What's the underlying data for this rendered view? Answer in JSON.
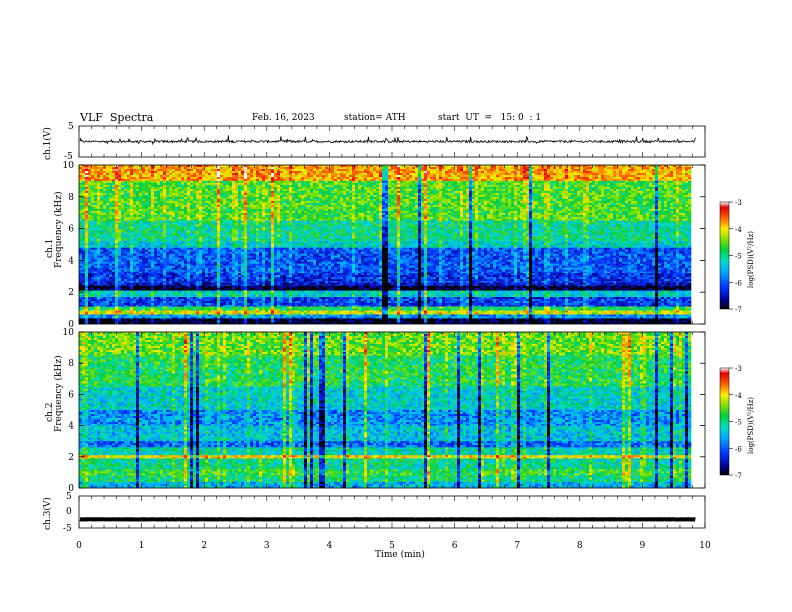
{
  "header": {
    "title": "VLF  Spectra",
    "date": "Feb. 16, 2023",
    "station": "station= ATH",
    "start_time": "start  UT  =   15: 0  : 1"
  },
  "chart_data": [
    {
      "type": "line",
      "name": "waveform-ch1",
      "ylabel": "ch.1(V)",
      "ylim": [
        -5,
        5
      ],
      "yticks": [
        "5",
        "-5"
      ],
      "xlim": [
        0,
        10
      ],
      "trace": {
        "color": "#000000",
        "baseline": 0,
        "noise_amplitude": 0.35,
        "spike_amplitude": 1.5
      }
    },
    {
      "type": "heatmap",
      "name": "spectrogram-ch1",
      "ylabel_channel": "ch.1",
      "ylabel": "Frequency  (kHz)",
      "ylim": [
        0,
        10
      ],
      "yticks": [
        "0",
        "2",
        "4",
        "6",
        "8",
        "10"
      ],
      "xlim": [
        0,
        9.8
      ],
      "colorbar": {
        "label": "log(PSD)(V²/Hz)",
        "range": [
          -7,
          -3
        ],
        "ticks": [
          "-3",
          "-4",
          "-5",
          "-6",
          "-7"
        ]
      },
      "bands": [
        {
          "freq": [
            9.0,
            10.0
          ],
          "log_psd": -4.0
        },
        {
          "freq": [
            6.5,
            9.0
          ],
          "log_psd": -4.8
        },
        {
          "freq": [
            5.2,
            6.5
          ],
          "log_psd": -5.2
        },
        {
          "freq": [
            4.8,
            5.2
          ],
          "log_psd": -5.4
        },
        {
          "freq": [
            3.2,
            4.8
          ],
          "log_psd": -6.1
        },
        {
          "freq": [
            2.6,
            3.2
          ],
          "log_psd": -6.3
        },
        {
          "freq": [
            2.4,
            2.6
          ],
          "log_psd": -6.5
        },
        {
          "freq": [
            2.1,
            2.4
          ],
          "log_psd": -7.0
        },
        {
          "freq": [
            1.7,
            2.1
          ],
          "log_psd": -5.4
        },
        {
          "freq": [
            1.1,
            1.7
          ],
          "log_psd": -6.2
        },
        {
          "freq": [
            0.85,
            1.1
          ],
          "log_psd": -5.0
        },
        {
          "freq": [
            0.6,
            0.85
          ],
          "log_psd": -4.4
        },
        {
          "freq": [
            0.35,
            0.6
          ],
          "log_psd": -5.8
        },
        {
          "freq": [
            0.0,
            0.35
          ],
          "log_psd": -7.0
        }
      ]
    },
    {
      "type": "heatmap",
      "name": "spectrogram-ch2",
      "ylabel_channel": "ch.2",
      "ylabel": "Frequency  (kHz)",
      "ylim": [
        0,
        10
      ],
      "yticks": [
        "0",
        "2",
        "4",
        "6",
        "8",
        "10"
      ],
      "xlim": [
        0,
        9.8
      ],
      "colorbar": {
        "label": "log(PSD)(V²/Hz)",
        "range": [
          -7,
          -3
        ],
        "ticks": [
          "-3",
          "-4",
          "-5",
          "-6",
          "-7"
        ]
      },
      "bands": [
        {
          "freq": [
            8.5,
            10.0
          ],
          "log_psd": -4.7
        },
        {
          "freq": [
            6.5,
            8.5
          ],
          "log_psd": -5.0
        },
        {
          "freq": [
            5.0,
            6.5
          ],
          "log_psd": -5.4
        },
        {
          "freq": [
            4.0,
            5.0
          ],
          "log_psd": -5.8
        },
        {
          "freq": [
            3.0,
            4.0
          ],
          "log_psd": -5.5
        },
        {
          "freq": [
            2.6,
            3.0
          ],
          "log_psd": -6.0
        },
        {
          "freq": [
            2.1,
            2.6
          ],
          "log_psd": -5.3
        },
        {
          "freq": [
            1.9,
            2.1
          ],
          "log_psd": -4.2
        },
        {
          "freq": [
            1.2,
            1.9
          ],
          "log_psd": -5.2
        },
        {
          "freq": [
            0.8,
            1.2
          ],
          "log_psd": -4.9
        },
        {
          "freq": [
            0.4,
            0.8
          ],
          "log_psd": -5.1
        },
        {
          "freq": [
            0.0,
            0.4
          ],
          "log_psd": -5.6
        }
      ]
    },
    {
      "type": "line",
      "name": "waveform-ch3",
      "ylabel": "ch.3(V)",
      "ylim": [
        -5,
        5
      ],
      "yticks": [
        "5",
        "0",
        "-5"
      ],
      "xlim": [
        0,
        10
      ],
      "trace": {
        "color": "#000000",
        "baseline": -2.3,
        "noise_amplitude": 0.05,
        "spike_amplitude": 0
      }
    }
  ],
  "xaxis": {
    "label": "Time  (min)",
    "ticks": [
      "0",
      "1",
      "2",
      "3",
      "4",
      "5",
      "6",
      "7",
      "8",
      "9",
      "10"
    ]
  }
}
